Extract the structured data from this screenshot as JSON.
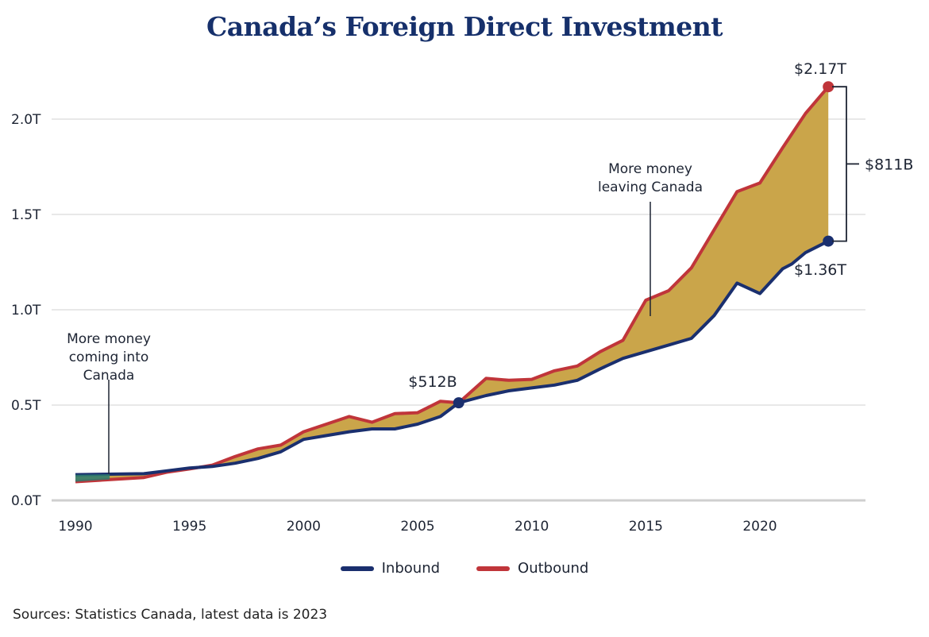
{
  "title": "Canada’s Foreign Direct Investment",
  "source": "Sources: Statistics Canada, latest data is 2023",
  "colors": {
    "inbound": "#1a2f6e",
    "outbound": "#c0353a",
    "fill": "#caa54a",
    "grid": "#d9d9d9",
    "axis": "#cfcfcf"
  },
  "legend": {
    "inbound": "Inbound",
    "outbound": "Outbound"
  },
  "annotations": {
    "coming_in": [
      "More money",
      "coming into",
      "Canada"
    ],
    "leaving": [
      "More money",
      "leaving Canada"
    ],
    "crossover": "$512B",
    "outbound_end": "$2.17T",
    "inbound_end": "$1.36T",
    "gap": "$811B"
  },
  "chart_data": {
    "type": "area",
    "title": "Canada’s Foreign Direct Investment",
    "xlabel": "",
    "ylabel": "",
    "xlim": [
      1990,
      2023
    ],
    "ylim": [
      0,
      2.0
    ],
    "yticks": [
      0,
      0.5,
      1.0,
      1.5,
      2.0
    ],
    "ytick_labels": [
      "0.0T",
      "0.5T",
      "1.0T",
      "1.5T",
      "2.0T"
    ],
    "xticks": [
      1990,
      1995,
      2000,
      2005,
      2010,
      2015,
      2020
    ],
    "xtick_labels": [
      "1990",
      "1995",
      "2000",
      "2005",
      "2010",
      "2015",
      "2020"
    ],
    "grid": true,
    "legend_position": "bottom-center",
    "crossover": {
      "year": 2006.8,
      "value": 0.512
    },
    "series": [
      {
        "name": "Inbound",
        "unit": "trillion CAD",
        "x": [
          1990,
          1993,
          1994,
          1995,
          1996,
          1997,
          1998,
          1999,
          2000,
          2001,
          2002,
          2003,
          2004,
          2005,
          2006,
          2006.8,
          2008,
          2009,
          2010,
          2011,
          2012,
          2013,
          2014,
          2015,
          2016,
          2017,
          2018,
          2019,
          2020,
          2021,
          2021.4,
          2022,
          2023
        ],
        "values": [
          0.135,
          0.14,
          0.155,
          0.17,
          0.178,
          0.195,
          0.22,
          0.255,
          0.32,
          0.34,
          0.36,
          0.375,
          0.375,
          0.4,
          0.44,
          0.512,
          0.55,
          0.575,
          0.59,
          0.605,
          0.63,
          0.69,
          0.745,
          0.78,
          0.815,
          0.85,
          0.97,
          1.14,
          1.085,
          1.215,
          1.24,
          1.3,
          1.36
        ]
      },
      {
        "name": "Outbound",
        "unit": "trillion CAD",
        "x": [
          1990,
          1993,
          1994,
          1995,
          1996,
          1997,
          1998,
          1999,
          2000,
          2001,
          2002,
          2003,
          2004,
          2005,
          2006,
          2006.8,
          2008,
          2009,
          2010,
          2011,
          2012,
          2013,
          2014,
          2015,
          2016,
          2017,
          2018,
          2019,
          2020,
          2021,
          2022,
          2023
        ],
        "values": [
          0.098,
          0.12,
          0.148,
          0.165,
          0.185,
          0.23,
          0.27,
          0.29,
          0.36,
          0.4,
          0.44,
          0.41,
          0.455,
          0.46,
          0.52,
          0.512,
          0.64,
          0.63,
          0.635,
          0.68,
          0.705,
          0.78,
          0.84,
          1.05,
          1.1,
          1.22,
          1.42,
          1.62,
          1.665,
          1.85,
          2.03,
          2.17
        ]
      }
    ]
  }
}
